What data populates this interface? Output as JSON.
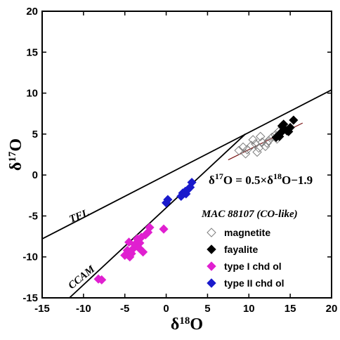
{
  "chart_data": {
    "type": "scatter",
    "title": "",
    "xlabel": {
      "delta": "δ",
      "sup": "18",
      "tail": "O"
    },
    "ylabel": {
      "delta": "δ",
      "sup": "17",
      "tail": "O"
    },
    "xlim": [
      -15,
      20
    ],
    "ylim": [
      -15,
      20
    ],
    "xticks": [
      -15,
      -10,
      -5,
      0,
      5,
      10,
      15,
      20
    ],
    "yticks": [
      -15,
      -10,
      -5,
      0,
      5,
      10,
      15,
      20
    ],
    "lines": [
      {
        "name": "TFL",
        "slope": 0.52,
        "intercept": 0,
        "x_range": [
          -15,
          20
        ]
      },
      {
        "name": "CCAM",
        "slope": 0.94,
        "intercept": -4.0,
        "x_range": [
          -11.7,
          9.6
        ]
      },
      {
        "name": "fit",
        "slope": 0.5,
        "intercept": -1.9,
        "x_range": [
          7.5,
          16.5
        ],
        "color": "#7a1515"
      }
    ],
    "equation": {
      "p1": "δ",
      "s1": "17",
      "p2": "O = 0.5×δ",
      "s2": "18",
      "p3": "O−1.9"
    },
    "legend": {
      "title": "MAC 88107 (CO-like)",
      "position": "bottom-right"
    },
    "series": [
      {
        "name": "magnetite",
        "marker": "diamond-open",
        "color": "#7f7f7f",
        "points": [
          [
            8.8,
            3.0
          ],
          [
            9.3,
            3.4
          ],
          [
            9.8,
            3.1
          ],
          [
            10.3,
            3.6
          ],
          [
            10.8,
            3.8
          ],
          [
            11.2,
            3.3
          ],
          [
            11.6,
            4.0
          ],
          [
            12.0,
            3.5
          ],
          [
            12.4,
            4.2
          ],
          [
            12.8,
            4.6
          ],
          [
            13.2,
            4.9
          ],
          [
            13.6,
            5.3
          ],
          [
            9.6,
            2.6
          ],
          [
            10.5,
            4.3
          ],
          [
            11.4,
            4.7
          ],
          [
            12.2,
            3.9
          ],
          [
            13.4,
            4.4
          ],
          [
            11.0,
            2.8
          ]
        ]
      },
      {
        "name": "fayalite",
        "marker": "diamond-filled",
        "color": "#000000",
        "points": [
          [
            13.3,
            4.6
          ],
          [
            13.8,
            5.1
          ],
          [
            14.0,
            6.0
          ],
          [
            14.3,
            5.6
          ],
          [
            14.6,
            5.4
          ],
          [
            15.0,
            5.8
          ],
          [
            15.4,
            6.7
          ],
          [
            13.7,
            4.7
          ],
          [
            14.8,
            5.3
          ],
          [
            14.2,
            6.2
          ]
        ]
      },
      {
        "name": "type I chd ol",
        "marker": "diamond-filled",
        "color": "#e020d0",
        "points": [
          [
            -8.2,
            -12.7
          ],
          [
            -7.8,
            -12.8
          ],
          [
            -5.0,
            -9.8
          ],
          [
            -4.7,
            -9.2
          ],
          [
            -4.5,
            -8.2
          ],
          [
            -4.2,
            -9.6
          ],
          [
            -4.0,
            -9.0
          ],
          [
            -3.8,
            -8.5
          ],
          [
            -3.5,
            -7.8
          ],
          [
            -3.2,
            -8.3
          ],
          [
            -3.0,
            -7.6
          ],
          [
            -2.8,
            -9.4
          ],
          [
            -2.5,
            -7.3
          ],
          [
            -2.2,
            -7.0
          ],
          [
            -2.0,
            -6.4
          ],
          [
            -4.4,
            -10.0
          ],
          [
            -3.3,
            -8.9
          ],
          [
            -0.3,
            -6.6
          ]
        ]
      },
      {
        "name": "type II chd ol",
        "marker": "diamond-filled",
        "color": "#1a1acc",
        "points": [
          [
            0.0,
            -3.4
          ],
          [
            0.2,
            -3.0
          ],
          [
            1.8,
            -2.6
          ],
          [
            2.0,
            -2.2
          ],
          [
            2.3,
            -2.0
          ],
          [
            2.6,
            -1.8
          ],
          [
            2.9,
            -1.5
          ],
          [
            3.1,
            -0.9
          ],
          [
            2.4,
            -2.3
          ]
        ]
      }
    ]
  }
}
